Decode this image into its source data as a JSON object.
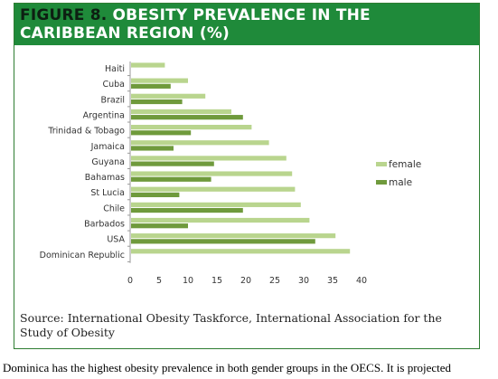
{
  "figure": {
    "title_number": "FIGURE 8.",
    "title_line1": "OBESITY PREVALENCE IN THE",
    "title_line2": "CARIBBEAN REGION (%)",
    "source": "Source: International Obesity Taskforce, International Association for the Study of Obesity"
  },
  "body_text": "Dominica has the highest obesity prevalence in both gender groups in the OECS. It is projected",
  "chart_data": {
    "type": "bar",
    "orientation": "horizontal",
    "categories": [
      "Haiti",
      "Cuba",
      "Brazil",
      "Argentina",
      "Trinidad & Tobago",
      "Jamaica",
      "Guyana",
      "Bahamas",
      "St Lucia",
      "Chile",
      "Barbados",
      "USA",
      "Dominican Republic"
    ],
    "series": [
      {
        "name": "female",
        "color": "#b9d58e",
        "values": [
          6,
          10,
          13,
          17.5,
          21,
          24,
          27,
          28,
          28.5,
          29.5,
          31,
          35.5,
          38
        ]
      },
      {
        "name": "male",
        "color": "#6f9a3c",
        "values": [
          null,
          7,
          9,
          19.5,
          10.5,
          7.5,
          14.5,
          14,
          8.5,
          19.5,
          10,
          32,
          null
        ]
      }
    ],
    "xlim": [
      0,
      40
    ],
    "xticks": [
      0,
      5,
      10,
      15,
      20,
      25,
      30,
      35,
      40
    ],
    "grid": false,
    "legend": "right"
  }
}
